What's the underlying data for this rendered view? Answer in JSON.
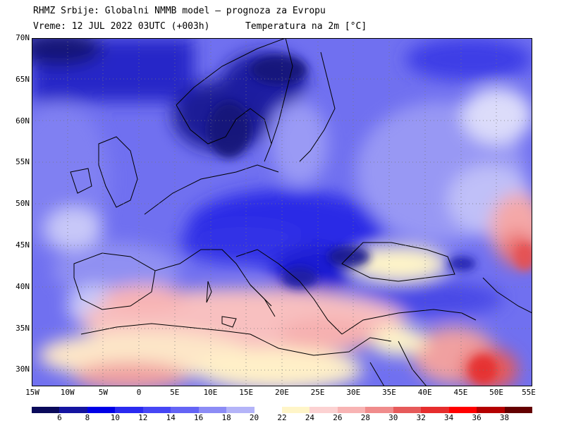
{
  "header": {
    "line1": "RHMZ Srbije: Globalni NMMB model — prognoza za Evropu",
    "line2": "Vreme: 12 JUL 2022 03UTC (+003h)",
    "line2b": "Temperatura na 2m [°C]"
  },
  "axes": {
    "lat_labels": [
      "70N",
      "65N",
      "60N",
      "55N",
      "50N",
      "45N",
      "40N",
      "35N",
      "30N"
    ],
    "lon_labels": [
      "15W",
      "10W",
      "5W",
      "0",
      "5E",
      "10E",
      "15E",
      "20E",
      "25E",
      "30E",
      "35E",
      "40E",
      "45E",
      "50E",
      "55E"
    ]
  },
  "legend": {
    "labels": [
      "6",
      "8",
      "10",
      "12",
      "14",
      "16",
      "18",
      "20",
      "22",
      "24",
      "26",
      "28",
      "30",
      "32",
      "34",
      "36",
      "38"
    ],
    "colors": [
      "#0a0a5a",
      "#1414a0",
      "#0000e6",
      "#2a2af0",
      "#4646f5",
      "#6464f5",
      "#8c8cf5",
      "#b4b4f8",
      "#ffffff",
      "#fff5c8",
      "#fcd2d2",
      "#f8b4b4",
      "#f08c8c",
      "#e65a5a",
      "#e62d2d",
      "#ff0000",
      "#b40000",
      "#640000"
    ]
  },
  "map": {
    "title": "",
    "lat_range": [
      28,
      70
    ],
    "lon_range": [
      -15,
      55
    ],
    "gridlines": "dotted"
  }
}
